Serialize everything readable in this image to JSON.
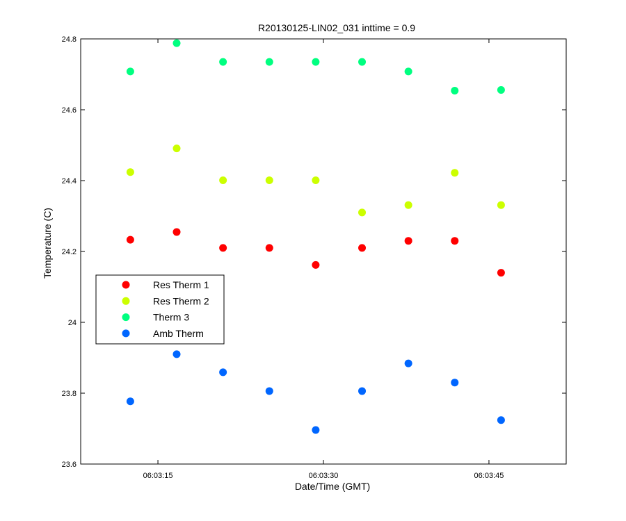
{
  "chart_data": {
    "type": "scatter",
    "title": "R20130125-LIN02_031 inttime = 0.9",
    "xlabel": "Date/Time (GMT)",
    "ylabel": "Temperature (C)",
    "x_ticks": [
      "06:03:15",
      "06:03:30",
      "06:03:45"
    ],
    "y_ticks": [
      "23.6",
      "23.8",
      "24",
      "24.2",
      "24.4",
      "24.6",
      "24.8"
    ],
    "ylim": [
      23.6,
      24.8
    ],
    "xlim": [
      "06:03:08",
      "06:03:52"
    ],
    "grid": false,
    "legend_position": "middle-left",
    "x": [
      "06:03:12.5",
      "06:03:16.7",
      "06:03:20.9",
      "06:03:25.1",
      "06:03:29.3",
      "06:03:33.5",
      "06:03:37.7",
      "06:03:41.9",
      "06:03:46.1"
    ],
    "series": [
      {
        "name": "Res Therm 1",
        "color": "#ff0000",
        "values": [
          24.233,
          24.255,
          24.21,
          24.21,
          24.162,
          24.21,
          24.23,
          24.23,
          24.14
        ]
      },
      {
        "name": "Res Therm 2",
        "color": "#ccff00",
        "values": [
          24.424,
          24.491,
          24.401,
          24.401,
          24.401,
          24.31,
          24.331,
          24.422,
          24.331
        ]
      },
      {
        "name": "Therm 3",
        "color": "#00ff80",
        "values": [
          24.708,
          24.788,
          24.735,
          24.735,
          24.735,
          24.735,
          24.708,
          24.654,
          24.656
        ]
      },
      {
        "name": "Amb Therm",
        "color": "#0066ff",
        "values": [
          23.777,
          23.91,
          23.859,
          23.806,
          23.696,
          23.806,
          23.884,
          23.83,
          23.724
        ]
      }
    ]
  }
}
